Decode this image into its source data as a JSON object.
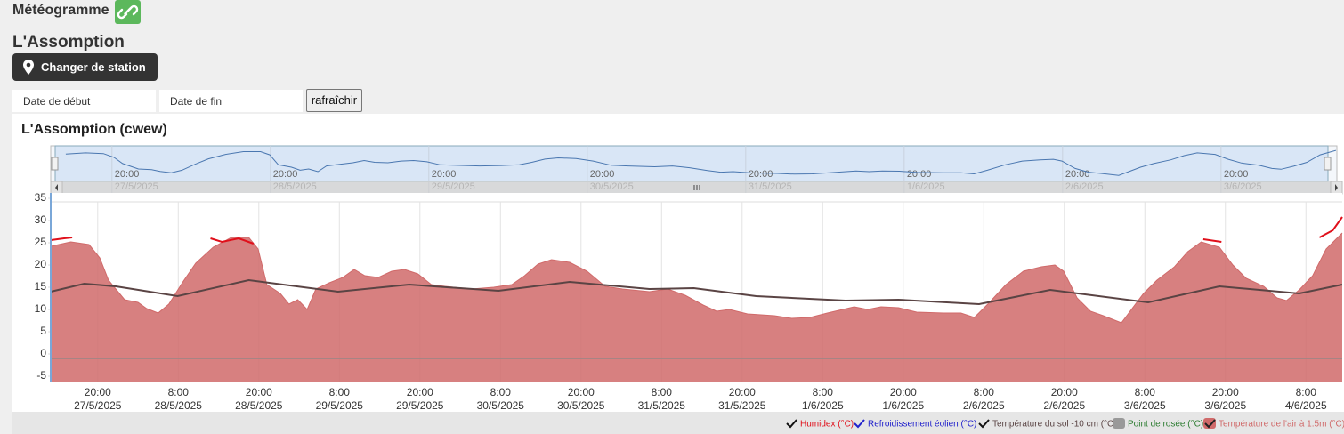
{
  "header": {
    "title": "Météogramme",
    "station": "L'Assomption",
    "change_button": "Changer de station",
    "start_placeholder": "Date de début",
    "end_placeholder": "Date de fin",
    "refresh": "rafraîchir"
  },
  "chart_data": {
    "type": "area",
    "title": "L'Assomption (cwew)",
    "xlim": [
      -7,
      185.4
    ],
    "ylim": [
      -5,
      35
    ],
    "yticks": [
      -5,
      0,
      5,
      10,
      15,
      20,
      25,
      30,
      35
    ],
    "grid": true,
    "xticks": [
      {
        "value": 0,
        "label": "20:00",
        "date": "27/5/2025"
      },
      {
        "value": 12,
        "label": "8:00",
        "date": "28/5/2025"
      },
      {
        "value": 24,
        "label": "20:00",
        "date": "28/5/2025"
      },
      {
        "value": 36,
        "label": "8:00",
        "date": "29/5/2025"
      },
      {
        "value": 48,
        "label": "20:00",
        "date": "29/5/2025"
      },
      {
        "value": 60,
        "label": "8:00",
        "date": "30/5/2025"
      },
      {
        "value": 72,
        "label": "20:00",
        "date": "30/5/2025"
      },
      {
        "value": 84,
        "label": "8:00",
        "date": "31/5/2025"
      },
      {
        "value": 96,
        "label": "20:00",
        "date": "31/5/2025"
      },
      {
        "value": 108,
        "label": "8:00",
        "date": "1/6/2025"
      },
      {
        "value": 120,
        "label": "20:00",
        "date": "1/6/2025"
      },
      {
        "value": 132,
        "label": "8:00",
        "date": "2/6/2025"
      },
      {
        "value": 144,
        "label": "20:00",
        "date": "2/6/2025"
      },
      {
        "value": 156,
        "label": "8:00",
        "date": "3/6/2025"
      },
      {
        "value": 168,
        "label": "20:00",
        "date": "3/6/2025"
      },
      {
        "value": 180,
        "label": "8:00",
        "date": "4/6/2025"
      }
    ],
    "navigator": {
      "xlim": [
        -8.6,
        184.2
      ],
      "ylim": [
        5,
        28
      ],
      "xticks": [
        {
          "value": 0,
          "label": "20:00",
          "date": "27/5/2025"
        },
        {
          "value": 24,
          "label": "20:00",
          "date": "28/5/2025"
        },
        {
          "value": 48,
          "label": "20:00",
          "date": "29/5/2025"
        },
        {
          "value": 72,
          "label": "20:00",
          "date": "30/5/2025"
        },
        {
          "value": 96,
          "label": "20:00",
          "date": "31/5/2025"
        },
        {
          "value": 120,
          "label": "20:00",
          "date": "1/6/2025"
        },
        {
          "value": 144,
          "label": "20:00",
          "date": "2/6/2025"
        },
        {
          "value": 168,
          "label": "20:00",
          "date": "3/6/2025"
        }
      ]
    },
    "series": [
      {
        "name": "Humidex (°C)",
        "color": "#e0101b",
        "style": "line",
        "x": [
          -7.0,
          -5.0,
          -3.8,
          10,
          16.8,
          18.5,
          21.0,
          23.2,
          100,
          164.7,
          167.4,
          175,
          182.0,
          184.0,
          185.4
        ],
        "values": [
          25.6,
          26.0,
          26.2,
          null,
          26.0,
          25.2,
          26.0,
          24.8,
          null,
          25.8,
          25.2,
          null,
          26.2,
          27.8,
          30.8
        ]
      },
      {
        "name": "Refroidissement éolien (°C)",
        "color": "#2222cc",
        "style": "line",
        "x": [],
        "values": []
      },
      {
        "name": "Température du sol -10 cm (°C)",
        "color": "#5a4444",
        "style": "line",
        "x": [
          -7.0,
          -2.0,
          2.7,
          11.9,
          22.5,
          35.8,
          46.4,
          59.7,
          70.3,
          82.2,
          88.8,
          98.1,
          111.4,
          119.3,
          131.3,
          141.9,
          156.5,
          167.1,
          179.0,
          185.4
        ],
        "values": [
          14.0,
          15.8,
          15.2,
          13.0,
          16.6,
          14.0,
          15.6,
          14.2,
          16.2,
          14.6,
          14.8,
          13.0,
          12.0,
          12.2,
          11.2,
          14.4,
          11.6,
          15.2,
          13.6,
          15.6
        ]
      },
      {
        "name": "Point de rosée (°C)",
        "color": "#2e7d32",
        "style": "line",
        "x": [],
        "values": []
      },
      {
        "name": "Température de l'air à 1.5m (°C)",
        "color": "#d06a6a",
        "style": "area",
        "x": [
          -7.0,
          -4.0,
          -1.3,
          0.3,
          1.6,
          4.0,
          6.0,
          7.3,
          9.0,
          10.6,
          12.6,
          14.6,
          17.2,
          19.9,
          22.5,
          23.9,
          25.2,
          27.2,
          28.5,
          29.8,
          31.2,
          32.5,
          34.5,
          36.5,
          38.2,
          39.8,
          41.8,
          43.8,
          45.7,
          47.7,
          49.7,
          51.7,
          55.7,
          59.0,
          61.7,
          63.6,
          65.6,
          67.6,
          70.3,
          72.9,
          75.6,
          78.2,
          82.2,
          84.9,
          87.5,
          90.2,
          92.2,
          94.1,
          96.8,
          100.8,
          103.4,
          106.1,
          108.7,
          112.7,
          114.7,
          116.7,
          119.3,
          122.0,
          126.0,
          128.6,
          130.6,
          132.6,
          135.3,
          137.9,
          140.6,
          142.6,
          143.9,
          145.9,
          147.9,
          149.8,
          152.5,
          153.8,
          155.8,
          157.8,
          160.4,
          162.4,
          164.4,
          167.1,
          169.1,
          171.1,
          173.7,
          175.7,
          177.1,
          179.0,
          181.0,
          183.0,
          185.4
        ],
        "values": [
          24.2,
          25.2,
          24.6,
          21.6,
          16.6,
          12.2,
          11.6,
          10.2,
          9.2,
          11.2,
          16.0,
          20.4,
          24.0,
          26.2,
          26.2,
          23.6,
          15.6,
          13.6,
          11.2,
          12.2,
          10.0,
          14.6,
          16.0,
          17.2,
          19.0,
          17.6,
          17.2,
          18.6,
          19.0,
          18.0,
          15.6,
          15.2,
          14.6,
          15.0,
          15.6,
          17.6,
          20.2,
          21.2,
          20.6,
          18.6,
          15.2,
          14.6,
          14.0,
          14.6,
          13.2,
          11.0,
          9.6,
          10.0,
          9.0,
          8.6,
          8.0,
          8.2,
          9.2,
          10.6,
          10.0,
          10.6,
          10.4,
          9.4,
          9.2,
          9.2,
          8.2,
          11.2,
          15.6,
          18.6,
          19.6,
          20.0,
          18.6,
          12.6,
          9.6,
          8.6,
          7.0,
          9.6,
          13.6,
          16.6,
          19.6,
          23.0,
          25.2,
          24.0,
          20.0,
          17.0,
          15.2,
          12.6,
          12.0,
          14.4,
          17.6,
          23.6,
          27.2
        ]
      }
    ]
  }
}
